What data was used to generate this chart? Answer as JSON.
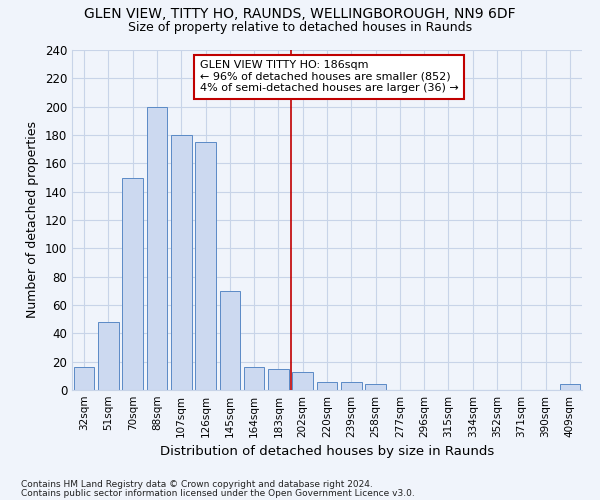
{
  "title": "GLEN VIEW, TITTY HO, RAUNDS, WELLINGBOROUGH, NN9 6DF",
  "subtitle": "Size of property relative to detached houses in Raunds",
  "xlabel": "Distribution of detached houses by size in Raunds",
  "ylabel": "Number of detached properties",
  "footnote1": "Contains HM Land Registry data © Crown copyright and database right 2024.",
  "footnote2": "Contains public sector information licensed under the Open Government Licence v3.0.",
  "bar_labels": [
    "32sqm",
    "51sqm",
    "70sqm",
    "88sqm",
    "107sqm",
    "126sqm",
    "145sqm",
    "164sqm",
    "183sqm",
    "202sqm",
    "220sqm",
    "239sqm",
    "258sqm",
    "277sqm",
    "296sqm",
    "315sqm",
    "334sqm",
    "352sqm",
    "371sqm",
    "390sqm",
    "409sqm"
  ],
  "bar_values": [
    16,
    48,
    150,
    200,
    180,
    175,
    70,
    16,
    15,
    13,
    6,
    6,
    4,
    0,
    0,
    0,
    0,
    0,
    0,
    0,
    4
  ],
  "bar_color": "#ccd9f0",
  "bar_edge_color": "#5a8ac6",
  "grid_color": "#c8d4e8",
  "background_color": "#f0f4fb",
  "annotation_text": "GLEN VIEW TITTY HO: 186sqm\n← 96% of detached houses are smaller (852)\n4% of semi-detached houses are larger (36) →",
  "annotation_box_color": "#ffffff",
  "annotation_box_edge_color": "#c00000",
  "vline_x": 8.5,
  "vline_color": "#c00000",
  "ylim": [
    0,
    240
  ],
  "yticks": [
    0,
    20,
    40,
    60,
    80,
    100,
    120,
    140,
    160,
    180,
    200,
    220,
    240
  ]
}
